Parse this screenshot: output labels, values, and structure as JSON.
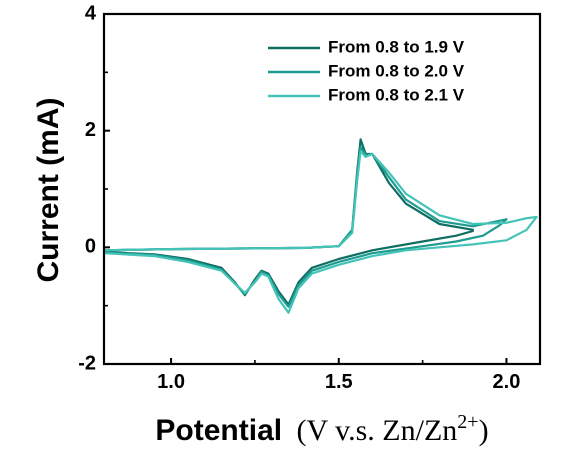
{
  "chart_data": {
    "type": "line",
    "title": "",
    "xlabel": "Potential",
    "xlabel_unit_prefix": "(V v.s. Zn/Zn",
    "xlabel_unit_sup": "2+",
    "xlabel_unit_suffix": ")",
    "ylabel": "Current (mA)",
    "xlim": [
      0.8,
      2.1
    ],
    "ylim": [
      -2,
      4
    ],
    "x_ticks": [
      {
        "value": 1.0,
        "label": "1.0"
      },
      {
        "value": 1.5,
        "label": "1.5"
      },
      {
        "value": 2.0,
        "label": "2.0"
      }
    ],
    "y_ticks": [
      {
        "value": 4,
        "label": "4"
      },
      {
        "value": 2,
        "label": "2"
      },
      {
        "value": 0,
        "label": "0"
      },
      {
        "value": -2,
        "label": "-2"
      }
    ],
    "grid": false,
    "legend_position": "top-right",
    "series": [
      {
        "name": "From 0.8 to 1.9 V",
        "color": "#0f6e62",
        "x": [
          0.8,
          1.0,
          1.2,
          1.4,
          1.5,
          1.54,
          1.555,
          1.565,
          1.58,
          1.6,
          1.65,
          1.7,
          1.8,
          1.9,
          1.9,
          1.85,
          1.75,
          1.6,
          1.5,
          1.42,
          1.38,
          1.35,
          1.32,
          1.29,
          1.27,
          1.25,
          1.22,
          1.19,
          1.15,
          1.05,
          0.95,
          0.8
        ],
        "y": [
          -0.05,
          -0.03,
          -0.02,
          -0.01,
          0.02,
          0.3,
          1.3,
          1.85,
          1.6,
          1.6,
          1.1,
          0.75,
          0.4,
          0.3,
          0.28,
          0.2,
          0.1,
          -0.05,
          -0.2,
          -0.35,
          -0.6,
          -0.98,
          -0.75,
          -0.45,
          -0.4,
          -0.55,
          -0.82,
          -0.6,
          -0.35,
          -0.2,
          -0.12,
          -0.08
        ]
      },
      {
        "name": "From 0.8 to 2.0 V",
        "color": "#1f9c92",
        "x": [
          0.8,
          1.0,
          1.2,
          1.4,
          1.5,
          1.54,
          1.555,
          1.565,
          1.58,
          1.6,
          1.65,
          1.7,
          1.8,
          1.9,
          2.0,
          1.98,
          1.93,
          1.85,
          1.75,
          1.6,
          1.5,
          1.42,
          1.38,
          1.35,
          1.32,
          1.29,
          1.27,
          1.25,
          1.22,
          1.19,
          1.15,
          1.05,
          0.95,
          0.8
        ],
        "y": [
          -0.05,
          -0.03,
          -0.02,
          -0.01,
          0.02,
          0.3,
          1.25,
          1.72,
          1.58,
          1.6,
          1.2,
          0.82,
          0.45,
          0.36,
          0.48,
          0.38,
          0.2,
          0.1,
          0.02,
          -0.1,
          -0.25,
          -0.4,
          -0.65,
          -1.02,
          -0.8,
          -0.48,
          -0.42,
          -0.58,
          -0.8,
          -0.62,
          -0.38,
          -0.22,
          -0.13,
          -0.09
        ]
      },
      {
        "name": "From 0.8 to 2.1 V",
        "color": "#45c3b8",
        "x": [
          0.8,
          1.0,
          1.2,
          1.4,
          1.5,
          1.54,
          1.555,
          1.565,
          1.58,
          1.6,
          1.65,
          1.7,
          1.8,
          1.9,
          2.0,
          2.06,
          2.09,
          2.06,
          2.0,
          1.9,
          1.8,
          1.7,
          1.6,
          1.5,
          1.42,
          1.38,
          1.35,
          1.32,
          1.29,
          1.27,
          1.25,
          1.22,
          1.19,
          1.15,
          1.05,
          0.95,
          0.8
        ],
        "y": [
          -0.05,
          -0.03,
          -0.02,
          -0.01,
          0.02,
          0.25,
          1.15,
          1.65,
          1.55,
          1.6,
          1.28,
          0.92,
          0.55,
          0.4,
          0.42,
          0.5,
          0.52,
          0.3,
          0.12,
          0.05,
          0.0,
          -0.05,
          -0.15,
          -0.3,
          -0.45,
          -0.7,
          -1.12,
          -0.88,
          -0.5,
          -0.45,
          -0.6,
          -0.78,
          -0.62,
          -0.4,
          -0.25,
          -0.15,
          -0.1
        ]
      }
    ]
  }
}
